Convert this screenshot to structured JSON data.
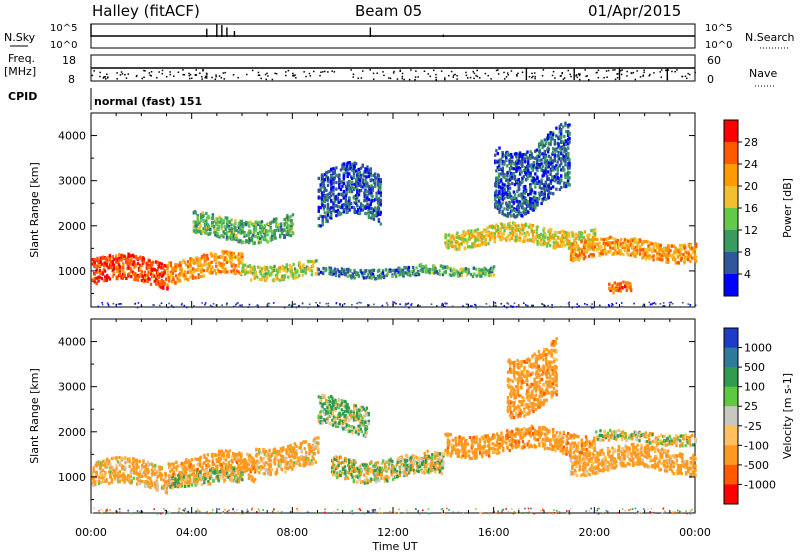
{
  "header": {
    "site": "Halley (fitACF)",
    "beam": "Beam 05",
    "date": "01/Apr/2015"
  },
  "strip_noise": {
    "left_label": "N.Sky",
    "left_ticks": [
      "10^5",
      "10^0"
    ],
    "right_ticks": [
      "10^5",
      "10^0"
    ],
    "right_label": "N.Search"
  },
  "strip_freq": {
    "left_label_line1": "Freq.",
    "left_label_line2": "[MHz]",
    "left_ticks": [
      "18",
      "8"
    ],
    "right_ticks": [
      "60",
      "0"
    ],
    "right_label": "Nave"
  },
  "strip_cpid": {
    "label": "CPID",
    "text": "normal (fast) 151"
  },
  "chart_data": [
    {
      "type": "heatmap",
      "name": "power",
      "ylabel": "Slant Range [km]",
      "y_ticks": [
        1000,
        2000,
        3000,
        4000
      ],
      "ylim": [
        200,
        4500
      ],
      "xlim": [
        0,
        24
      ],
      "colorbar_label": "Power [dB]",
      "colorbar_ticks": [
        "28",
        "24",
        "20",
        "16",
        "12",
        "8",
        "4"
      ],
      "colorbar_colors": [
        "#ff0000",
        "#ff5a00",
        "#ff9a00",
        "#f0c030",
        "#66c84a",
        "#3a9a60",
        "#305898",
        "#0000ff"
      ],
      "bands": [
        {
          "start": 0.0,
          "end": 3.0,
          "center": 1000,
          "width": 350,
          "level": 27
        },
        {
          "start": 3.0,
          "end": 6.0,
          "center": 1100,
          "width": 300,
          "level": 22
        },
        {
          "start": 6.0,
          "end": 9.0,
          "center": 1050,
          "width": 200,
          "level": 16
        },
        {
          "start": 9.0,
          "end": 13.0,
          "center": 1000,
          "width": 120,
          "level": 8
        },
        {
          "start": 13.0,
          "end": 16.0,
          "center": 1050,
          "width": 120,
          "level": 12
        },
        {
          "start": 14.0,
          "end": 20.0,
          "center": 1800,
          "width": 250,
          "level": 18
        },
        {
          "start": 19.0,
          "end": 24.0,
          "center": 1500,
          "width": 250,
          "level": 22
        },
        {
          "start": 9.0,
          "end": 11.5,
          "center": 2600,
          "width": 700,
          "level": 6
        },
        {
          "start": 16.0,
          "end": 19.0,
          "center": 3300,
          "width": 900,
          "level": 6
        },
        {
          "start": 4.0,
          "end": 8.0,
          "center": 2000,
          "width": 300,
          "level": 12
        },
        {
          "start": 20.5,
          "end": 21.5,
          "center": 700,
          "width": 150,
          "level": 26
        }
      ]
    },
    {
      "type": "heatmap",
      "name": "velocity",
      "ylabel": "Slant Range [km]",
      "y_ticks": [
        1000,
        2000,
        3000,
        4000
      ],
      "ylim": [
        200,
        4500
      ],
      "xlim": [
        0,
        24
      ],
      "xlabel": "Time UT",
      "x_tick_labels": [
        "00:00",
        "04:00",
        "08:00",
        "12:00",
        "16:00",
        "20:00",
        "00:00"
      ],
      "colorbar_label": "Velocity [m s-1]",
      "colorbar_ticks": [
        "1000",
        "500",
        "100",
        "25",
        "-25",
        "-100",
        "-500",
        "-1000"
      ],
      "colorbar_colors": [
        "#1e3cc8",
        "#2f7a9a",
        "#2f9a50",
        "#60c840",
        "#c8c8c0",
        "#ffc060",
        "#ff9a20",
        "#ff5a00",
        "#ff0000"
      ],
      "bands": [
        {
          "start": 0.0,
          "end": 3.0,
          "center": 1050,
          "width": 350,
          "level": -200
        },
        {
          "start": 3.0,
          "end": 6.5,
          "center": 1200,
          "width": 350,
          "level": -300
        },
        {
          "start": 6.5,
          "end": 9.0,
          "center": 1500,
          "width": 350,
          "level": -200
        },
        {
          "start": 9.5,
          "end": 14.0,
          "center": 1250,
          "width": 300,
          "level": 0
        },
        {
          "start": 14.0,
          "end": 20.0,
          "center": 1800,
          "width": 300,
          "level": -300
        },
        {
          "start": 19.0,
          "end": 24.0,
          "center": 1400,
          "width": 300,
          "level": -250
        },
        {
          "start": 20.0,
          "end": 24.0,
          "center": 1900,
          "width": 150,
          "level": 0
        },
        {
          "start": 3.0,
          "end": 6.0,
          "center": 1000,
          "width": 200,
          "level": 0
        },
        {
          "start": 16.5,
          "end": 18.5,
          "center": 3300,
          "width": 800,
          "level": -300
        },
        {
          "start": 9.0,
          "end": 11.0,
          "center": 2400,
          "width": 400,
          "level": 80
        }
      ]
    }
  ]
}
